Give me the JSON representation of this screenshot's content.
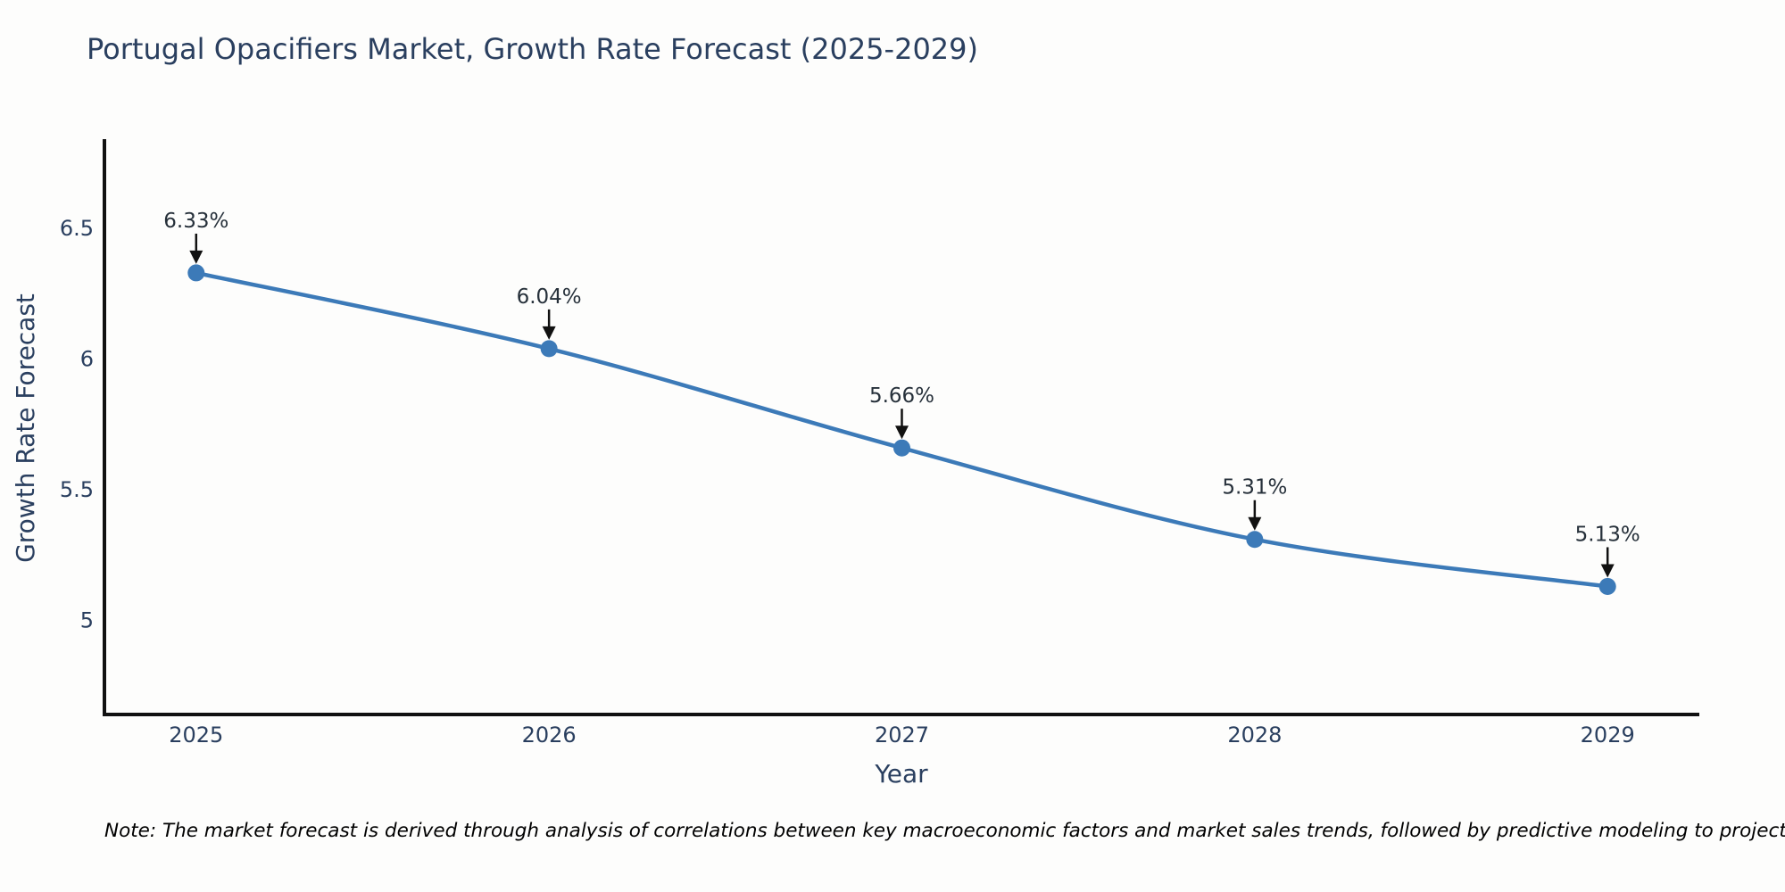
{
  "header": {
    "title": "Portugal Opacifiers Market, Growth Rate Forecast (2025-2029)"
  },
  "chart_data": {
    "type": "line",
    "title": "Portugal Opacifiers Market, Growth Rate Forecast (2025-2029)",
    "xlabel": "Year",
    "ylabel": "Growth Rate Forecast",
    "x": [
      2025,
      2026,
      2027,
      2028,
      2029
    ],
    "values": [
      6.33,
      6.04,
      5.66,
      5.31,
      5.13
    ],
    "point_labels": [
      "6.33%",
      "6.04%",
      "5.66%",
      "5.31%",
      "5.13%"
    ],
    "xticks": [
      2025,
      2026,
      2027,
      2028,
      2029
    ],
    "xtick_labels": [
      "2025",
      "2026",
      "2027",
      "2028",
      "2029"
    ],
    "yticks": [
      5,
      5.5,
      6,
      6.5
    ],
    "ytick_labels": [
      "5",
      "5.5",
      "6",
      "6.5"
    ],
    "xlim": [
      2024.74,
      2029.26
    ],
    "ylim": [
      4.64,
      6.835
    ],
    "grid": false,
    "legend": false,
    "line_shape": "spline",
    "colors": {
      "line": "#3c7ab8",
      "marker": "#3c7ab8",
      "axis": "#111111",
      "tick_text": "#2a3f5f",
      "annotation_text": "#26303a",
      "arrow": "#111111",
      "title_text": "#2a3f5f",
      "background": "#fdfdfc"
    }
  },
  "footer": {
    "note": "Note: The market forecast is derived through analysis of correlations between key macroeconomic factors and market sales trends, followed by predictive modeling to project future sales"
  }
}
